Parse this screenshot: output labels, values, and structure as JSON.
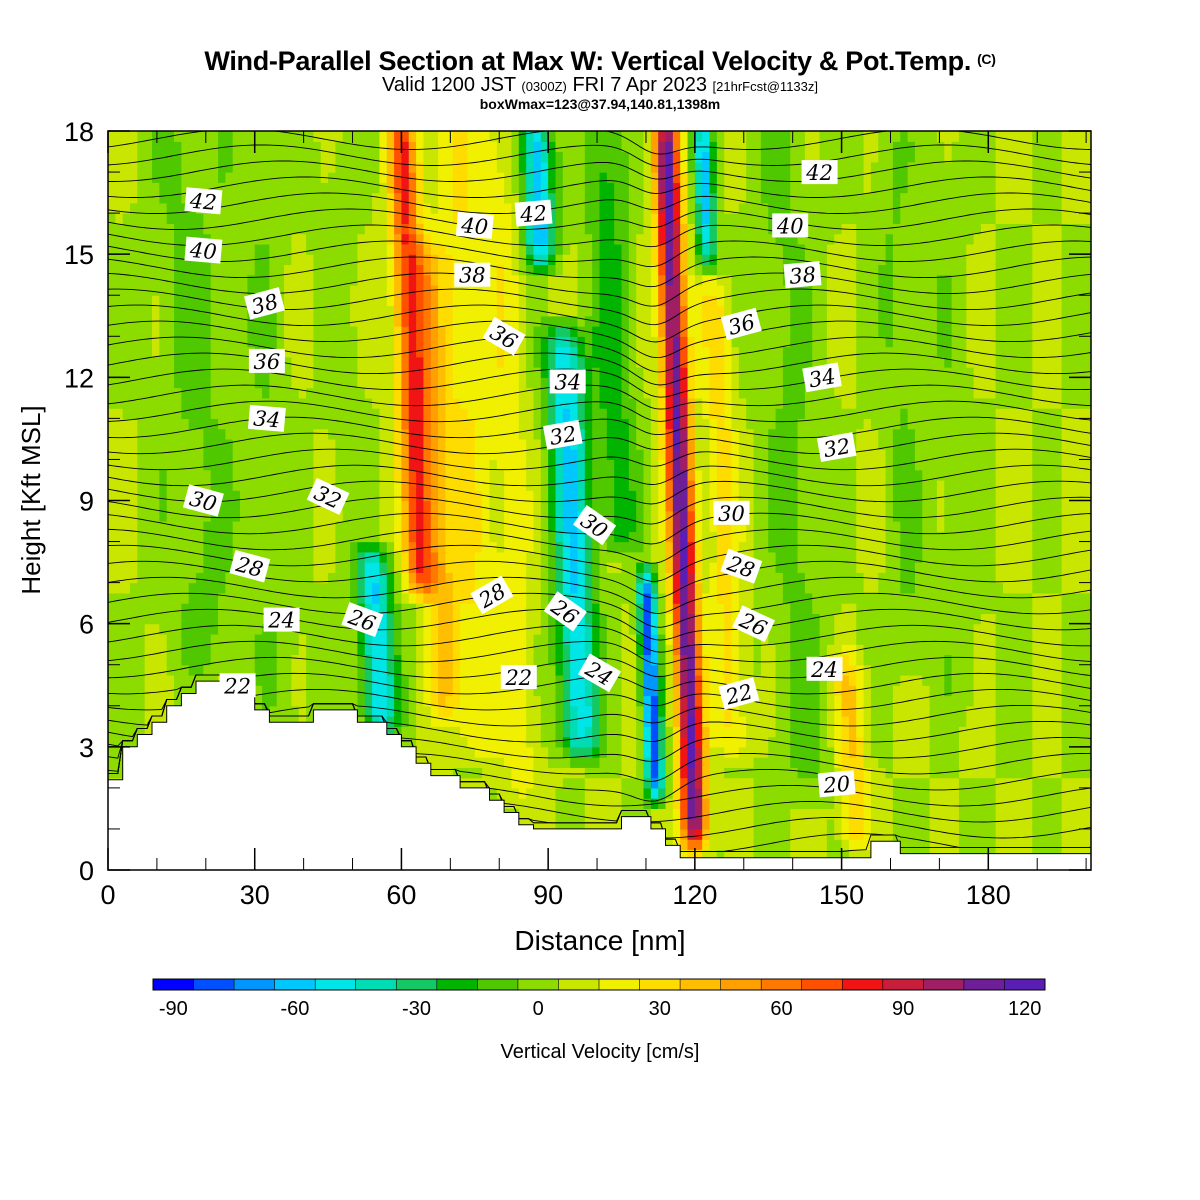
{
  "header": {
    "title": "Wind-Parallel Section at Max W: Vertical Velocity & Pot.Temp.",
    "copyright": "(C)",
    "valid_prefix": "Valid 1200 JST",
    "valid_z": "(0300Z)",
    "valid_date": "FRI 7 Apr 2023",
    "forecast_info": "[21hrFcst@1133z]",
    "box_info": "boxWmax=123@37.94,140.81,1398m"
  },
  "chart_data": {
    "type": "heatmap",
    "xlabel": "Distance [nm]",
    "ylabel": "Height [Kft MSL]",
    "xlim": [
      0,
      201
    ],
    "ylim": [
      0,
      18
    ],
    "x_ticks": [
      "0",
      "30",
      "60",
      "90",
      "120",
      "150",
      "180"
    ],
    "x_tick_values": [
      0,
      30,
      60,
      90,
      120,
      150,
      180
    ],
    "y_ticks": [
      "0",
      "3",
      "6",
      "9",
      "12",
      "15",
      "18"
    ],
    "y_tick_values": [
      0,
      3,
      6,
      9,
      12,
      15,
      18
    ],
    "colorbar": {
      "label": "Vertical Velocity [cm/s]",
      "tick_labels": [
        "-90",
        "-60",
        "-30",
        "0",
        "30",
        "60",
        "90",
        "120"
      ],
      "tick_values": [
        -90,
        -60,
        -30,
        0,
        30,
        60,
        90,
        120
      ],
      "min": -95,
      "max": 125,
      "step": 10,
      "colors": [
        "#0000ff",
        "#0050ff",
        "#0096ff",
        "#00c8ff",
        "#00e6e6",
        "#00dcb4",
        "#14c864",
        "#00b400",
        "#50c800",
        "#8cdc00",
        "#c8e600",
        "#f0f000",
        "#ffdc00",
        "#ffbe00",
        "#ffa000",
        "#ff7800",
        "#ff5000",
        "#f01414",
        "#c81e3c",
        "#a01e64",
        "#6e1e96",
        "#5a1eb4"
      ]
    },
    "w_field": {
      "description_units": "cm/s",
      "base_value": 5,
      "ridges": [
        {
          "x": 18,
          "y0": 5,
          "y1": 18,
          "w": -12,
          "sx": 8
        },
        {
          "x": 33,
          "y0": 3,
          "y1": 18,
          "w": -8,
          "sx": 5
        },
        {
          "x": 48,
          "y0": 7,
          "y1": 18,
          "w": -5,
          "sx": 4
        },
        {
          "x": 55,
          "y0": 3.5,
          "y1": 7.5,
          "w": -60,
          "sx": 3.5
        },
        {
          "x": 62,
          "y0": 7,
          "y1": 18,
          "w": 70,
          "sx": 3
        },
        {
          "x": 67,
          "y0": 4,
          "y1": 15,
          "w": 30,
          "sx": 3
        },
        {
          "x": 73,
          "y0": 3,
          "y1": 18,
          "w": 20,
          "sx": 5
        },
        {
          "x": 82,
          "y0": 2,
          "y1": 18,
          "w": 15,
          "sx": 4
        },
        {
          "x": 88,
          "y0": 15,
          "y1": 18,
          "w": -70,
          "sx": 3
        },
        {
          "x": 95,
          "y0": 3,
          "y1": 13,
          "w": -60,
          "sx": 4
        },
        {
          "x": 103,
          "y0": 8,
          "y1": 18,
          "w": -25,
          "sx": 4
        },
        {
          "x": 111,
          "y0": 2,
          "y1": 7,
          "w": -90,
          "sx": 1.8
        },
        {
          "x": 117,
          "y0": 0.8,
          "y1": 18,
          "w": 110,
          "sx": 2.6
        },
        {
          "x": 122,
          "y0": 15,
          "y1": 18,
          "w": -60,
          "sx": 2
        },
        {
          "x": 126,
          "y0": 3,
          "y1": 14,
          "w": 25,
          "sx": 3
        },
        {
          "x": 140,
          "y0": 2,
          "y1": 18,
          "w": -12,
          "sx": 6
        },
        {
          "x": 152,
          "y0": 0.8,
          "y1": 5,
          "w": 30,
          "sx": 3
        },
        {
          "x": 162,
          "y0": 5,
          "y1": 18,
          "w": -10,
          "sx": 4
        },
        {
          "x": 172,
          "y0": 4,
          "y1": 18,
          "w": -6,
          "sx": 5
        }
      ]
    },
    "terrain": {
      "x": [
        0,
        3,
        3,
        6,
        6,
        9,
        9,
        12,
        12,
        15,
        15,
        18,
        18,
        21,
        21,
        24,
        24,
        27,
        27,
        30,
        30,
        33,
        33,
        42,
        42,
        51,
        51,
        57,
        57,
        60,
        60,
        63,
        63,
        66,
        66,
        72,
        72,
        78,
        78,
        81,
        81,
        84,
        84,
        87,
        87,
        90,
        90,
        93,
        93,
        105,
        105,
        111,
        111,
        114,
        114,
        117,
        117,
        156,
        156,
        162,
        162,
        201
      ],
      "y": [
        2.2,
        2.2,
        3.0,
        3.0,
        3.3,
        3.3,
        3.6,
        3.6,
        4.0,
        4.0,
        4.3,
        4.3,
        4.6,
        4.6,
        4.6,
        4.6,
        4.6,
        4.6,
        4.3,
        4.3,
        3.9,
        3.9,
        3.6,
        3.6,
        3.9,
        3.9,
        3.6,
        3.6,
        3.3,
        3.3,
        3.0,
        3.0,
        2.6,
        2.6,
        2.3,
        2.3,
        2.0,
        2.0,
        1.7,
        1.7,
        1.4,
        1.4,
        1.1,
        1.1,
        1.0,
        1.0,
        1.0,
        1.0,
        1.0,
        1.0,
        1.3,
        1.3,
        1.0,
        1.0,
        0.6,
        0.6,
        0.3,
        0.3,
        0.7,
        0.7,
        0.4,
        0.4
      ]
    },
    "theta_contour_labels": [
      {
        "text": "42",
        "x": 19.5,
        "y": 16.3,
        "angle": 5
      },
      {
        "text": "40",
        "x": 19.5,
        "y": 15.1,
        "angle": 5
      },
      {
        "text": "38",
        "x": 32,
        "y": 13.8,
        "angle": -15
      },
      {
        "text": "36",
        "x": 32.5,
        "y": 12.4,
        "angle": 0
      },
      {
        "text": "34",
        "x": 32.5,
        "y": 11.0,
        "angle": 5
      },
      {
        "text": "30",
        "x": 19.5,
        "y": 9.0,
        "angle": 15
      },
      {
        "text": "28",
        "x": 29,
        "y": 7.4,
        "angle": 15
      },
      {
        "text": "24",
        "x": 35.5,
        "y": 6.1,
        "angle": 0
      },
      {
        "text": "22",
        "x": 26.5,
        "y": 4.5,
        "angle": 0
      },
      {
        "text": "32",
        "x": 45,
        "y": 9.1,
        "angle": 25
      },
      {
        "text": "26",
        "x": 52,
        "y": 6.1,
        "angle": 20
      },
      {
        "text": "40",
        "x": 75,
        "y": 15.7,
        "angle": 5
      },
      {
        "text": "38",
        "x": 74.5,
        "y": 14.5,
        "angle": 0
      },
      {
        "text": "36",
        "x": 81,
        "y": 13.0,
        "angle": 30
      },
      {
        "text": "42",
        "x": 87,
        "y": 16.0,
        "angle": -5
      },
      {
        "text": "34",
        "x": 94,
        "y": 11.9,
        "angle": 0
      },
      {
        "text": "32",
        "x": 93,
        "y": 10.6,
        "angle": -10
      },
      {
        "text": "30",
        "x": 99.5,
        "y": 8.4,
        "angle": 35
      },
      {
        "text": "28",
        "x": 78.5,
        "y": 6.7,
        "angle": -30
      },
      {
        "text": "26",
        "x": 93.5,
        "y": 6.3,
        "angle": 35
      },
      {
        "text": "22",
        "x": 84,
        "y": 4.7,
        "angle": 0
      },
      {
        "text": "24",
        "x": 100.5,
        "y": 4.8,
        "angle": 30
      },
      {
        "text": "30",
        "x": 127.5,
        "y": 8.7,
        "angle": 0
      },
      {
        "text": "28",
        "x": 129.5,
        "y": 7.4,
        "angle": 20
      },
      {
        "text": "26",
        "x": 132,
        "y": 6.0,
        "angle": 25
      },
      {
        "text": "22",
        "x": 129,
        "y": 4.3,
        "angle": -15
      },
      {
        "text": "36",
        "x": 129.5,
        "y": 13.3,
        "angle": -15
      },
      {
        "text": "40",
        "x": 139.5,
        "y": 15.7,
        "angle": 0
      },
      {
        "text": "42",
        "x": 145.5,
        "y": 17.0,
        "angle": 0
      },
      {
        "text": "38",
        "x": 142,
        "y": 14.5,
        "angle": -5
      },
      {
        "text": "34",
        "x": 146,
        "y": 12.0,
        "angle": -10
      },
      {
        "text": "32",
        "x": 149,
        "y": 10.3,
        "angle": -10
      },
      {
        "text": "24",
        "x": 146.5,
        "y": 4.9,
        "angle": 0
      },
      {
        "text": "20",
        "x": 149,
        "y": 2.1,
        "angle": -5
      }
    ]
  }
}
